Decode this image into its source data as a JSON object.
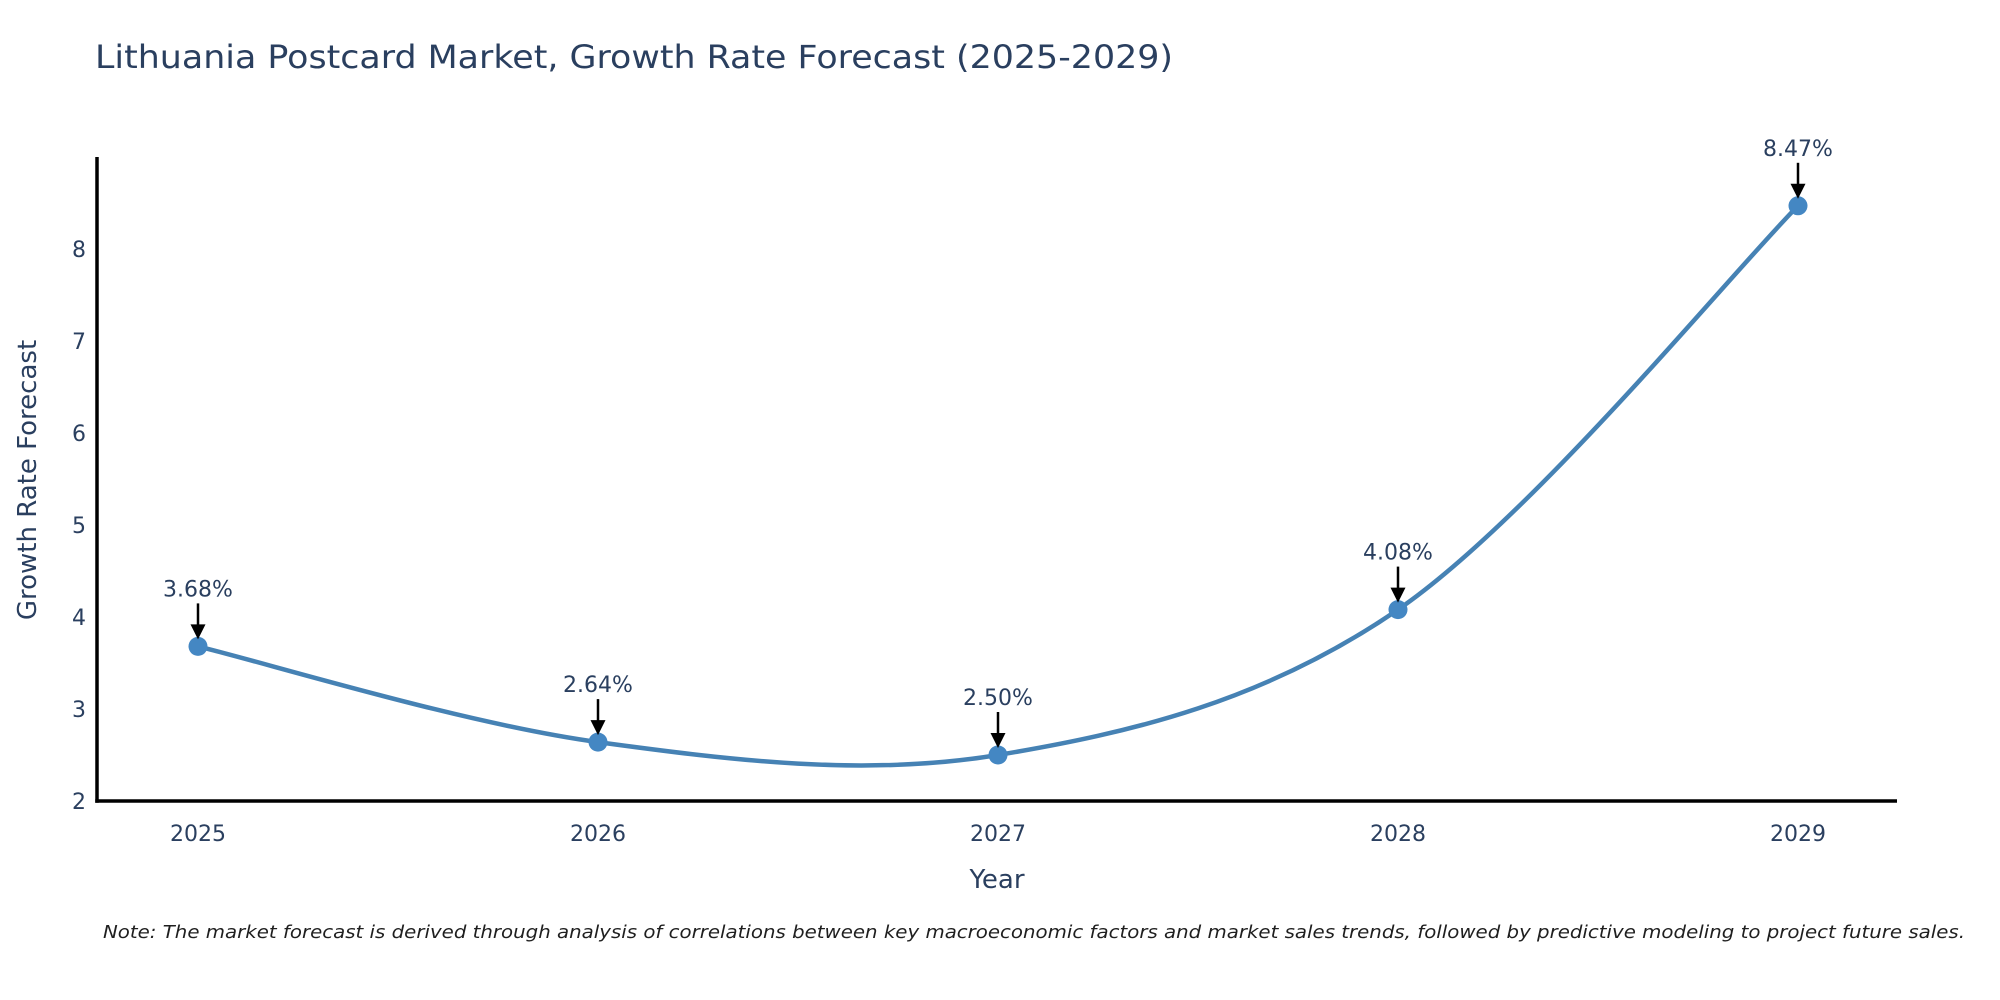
{
  "title": "Lithuania Postcard Market, Growth Rate Forecast (2025-2029)",
  "note": "Note: The market forecast is derived through analysis of correlations between key macroeconomic factors and market sales trends, followed by predictive modeling to project future sales.",
  "chart_data": {
    "type": "line",
    "title": "Lithuania Postcard Market, Growth Rate Forecast (2025-2029)",
    "xlabel": "Year",
    "ylabel": "Growth Rate Forecast",
    "categories": [
      "2025",
      "2026",
      "2027",
      "2028",
      "2029"
    ],
    "values": [
      3.68,
      2.64,
      2.5,
      4.08,
      8.47
    ],
    "point_labels": [
      "3.68%",
      "2.64%",
      "2.50%",
      "4.08%",
      "8.47%"
    ],
    "yticks": [
      "2",
      "3",
      "4",
      "5",
      "6",
      "7",
      "8"
    ],
    "ylim": [
      2,
      9
    ],
    "line_shape": "spline",
    "grid": false,
    "legend_position": "none",
    "annotation_arrows": "down-arrows-to-points",
    "colors": {
      "line": "#4682b4",
      "marker": "#4487c3",
      "axis": "#000000",
      "text": "#2a3f5f",
      "annotation_text": "#2a3f5f",
      "arrow": "#000000",
      "note_text": "#1f1f1f",
      "background": "#ffffff"
    }
  }
}
